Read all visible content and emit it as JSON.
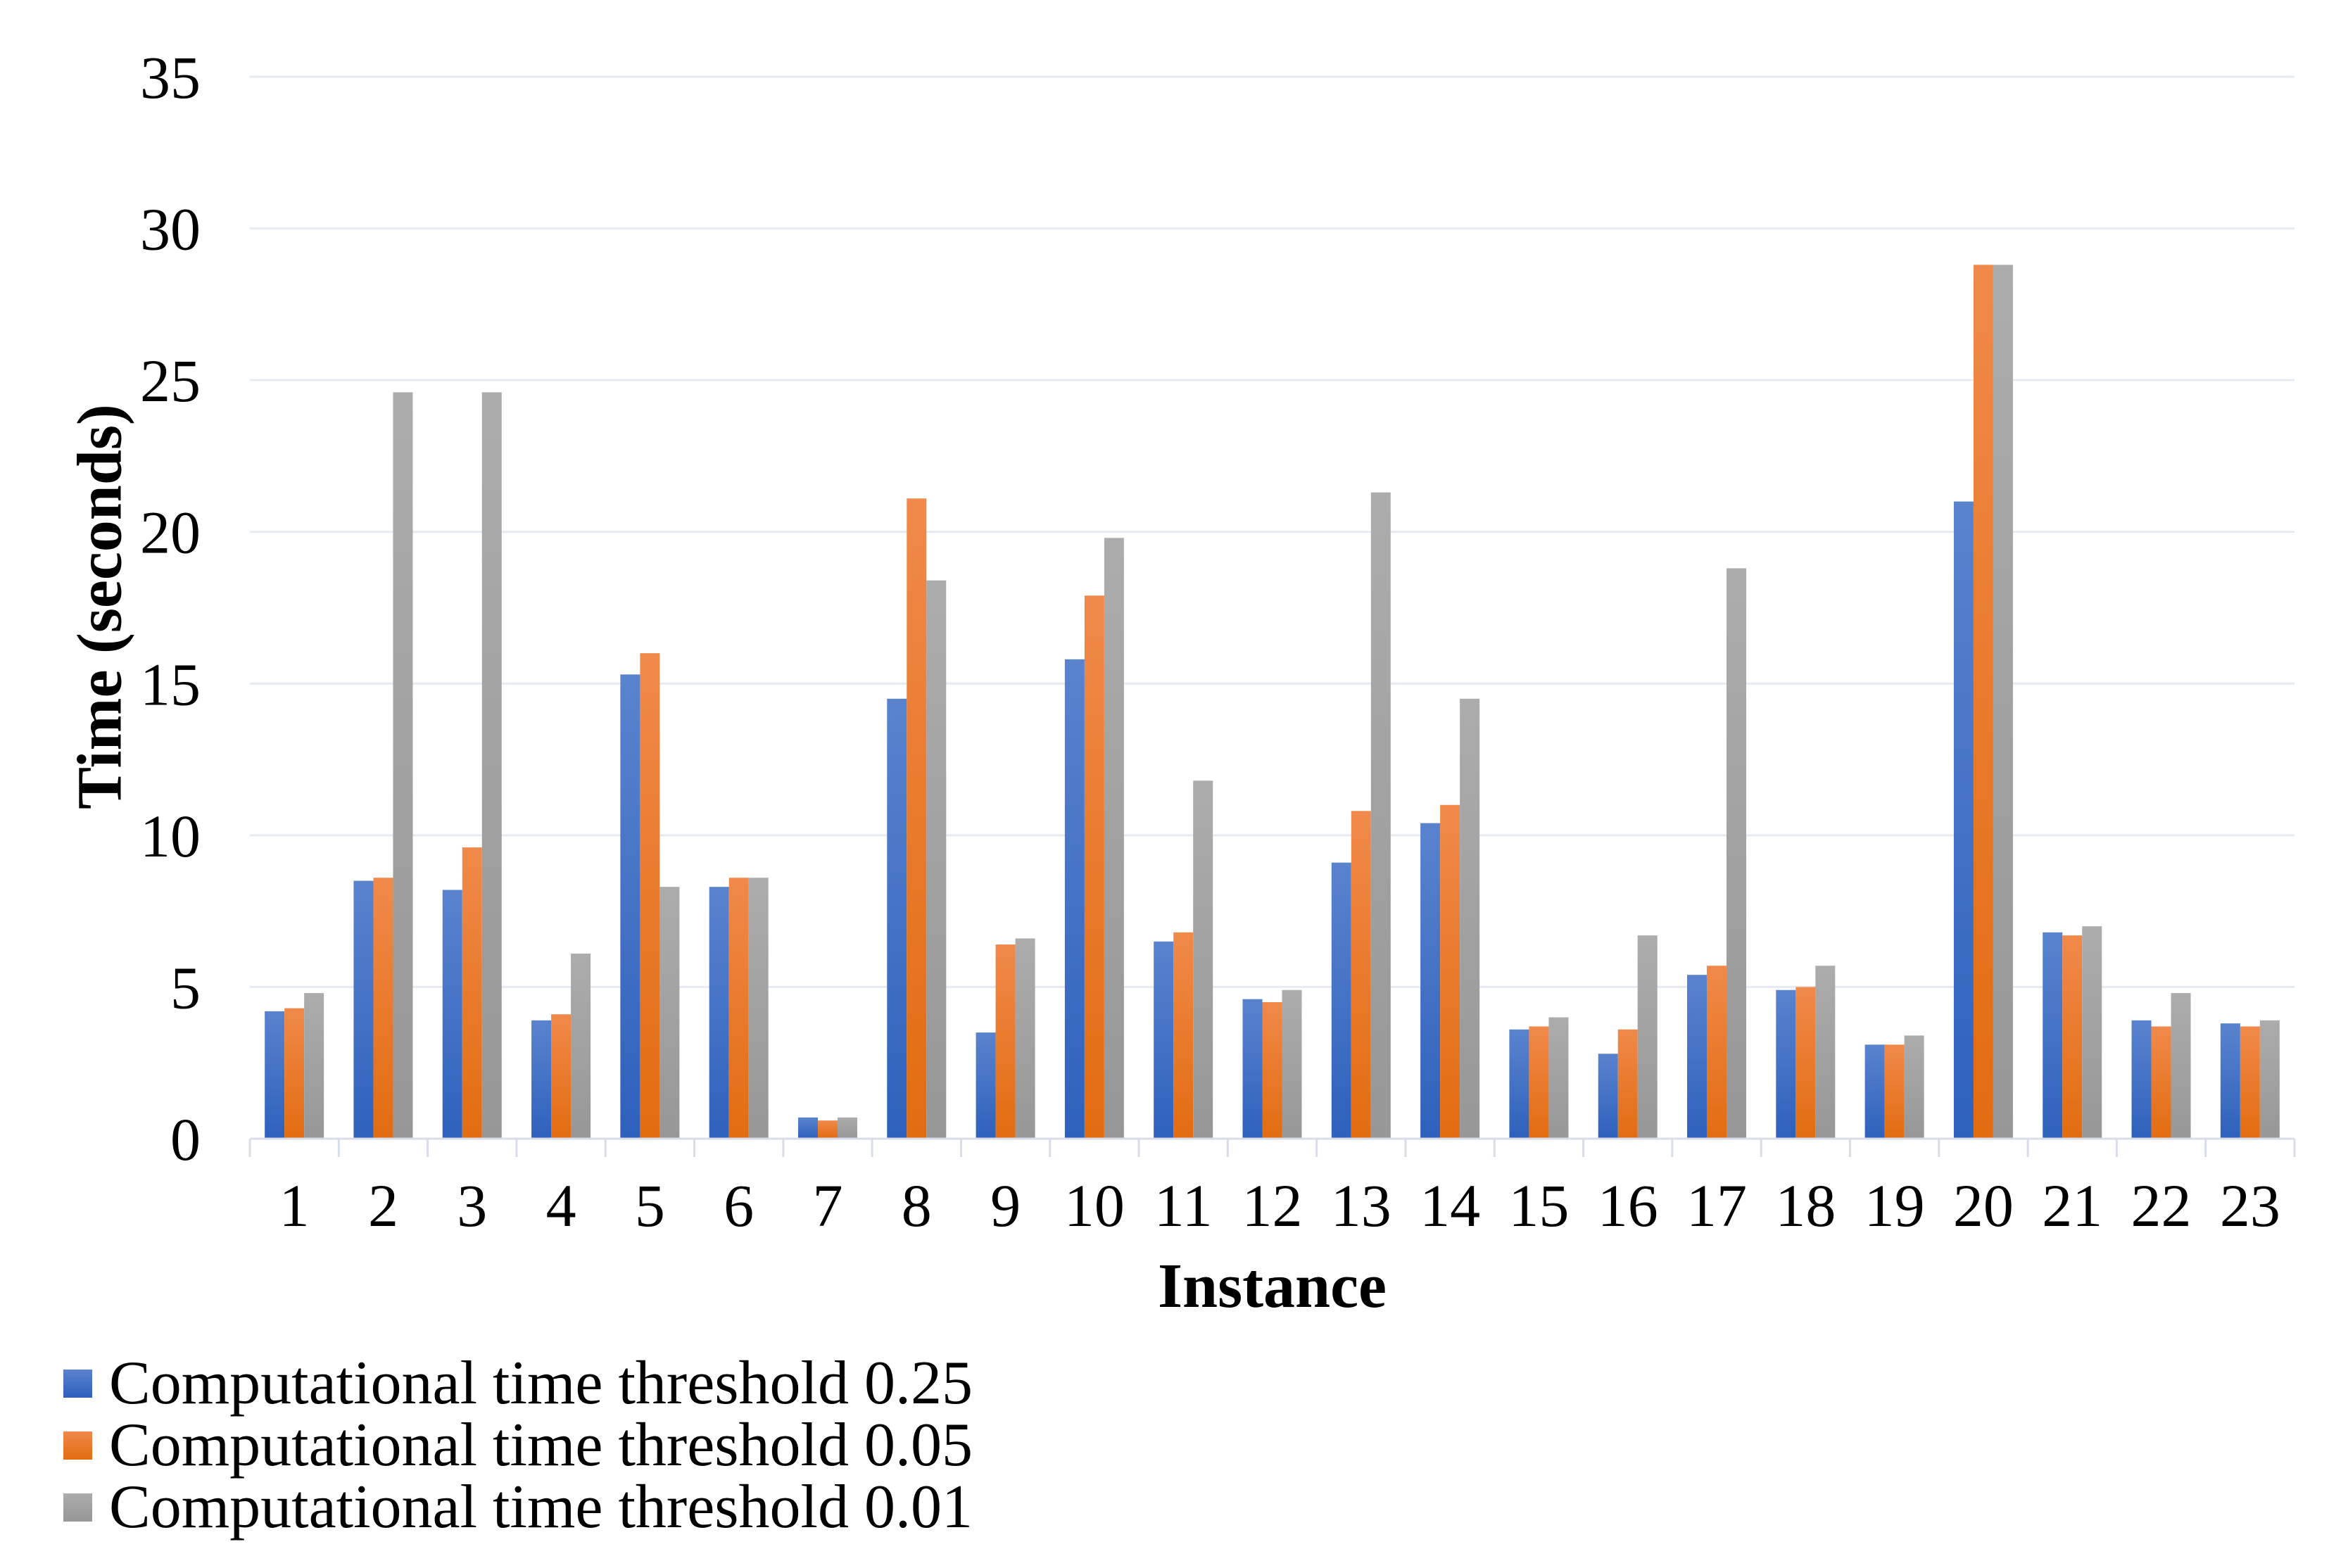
{
  "page": {
    "background": "#FFFFFF"
  },
  "chart_data": {
    "type": "bar",
    "title": "",
    "xlabel": "Instance",
    "ylabel": "Time (seconds)",
    "categories": [
      "1",
      "2",
      "3",
      "4",
      "5",
      "6",
      "7",
      "8",
      "9",
      "10",
      "11",
      "12",
      "13",
      "14",
      "15",
      "16",
      "17",
      "18",
      "19",
      "20",
      "21",
      "22",
      "23"
    ],
    "series": [
      {
        "name": "Computational time threshold 0.25",
        "color_top": "#5A83CE",
        "color_bottom": "#2E61BC",
        "values": [
          4.2,
          8.5,
          8.2,
          3.9,
          15.3,
          8.3,
          0.7,
          14.5,
          3.5,
          15.8,
          6.5,
          4.6,
          9.1,
          10.4,
          3.6,
          2.8,
          5.4,
          4.9,
          3.1,
          21.0,
          6.8,
          3.9,
          3.8
        ]
      },
      {
        "name": "Computational time threshold 0.05",
        "color_top": "#F0894A",
        "color_bottom": "#E26C10",
        "values": [
          4.3,
          8.6,
          9.6,
          4.1,
          16.0,
          8.6,
          0.6,
          21.1,
          6.4,
          17.9,
          6.8,
          4.5,
          10.8,
          11.0,
          3.7,
          3.6,
          5.7,
          5.0,
          3.1,
          28.8,
          6.7,
          3.7,
          3.7
        ]
      },
      {
        "name": "Computational time threshold 0.01",
        "color_top": "#ACACAC",
        "color_bottom": "#979797",
        "values": [
          4.8,
          24.6,
          24.6,
          6.1,
          8.3,
          8.6,
          0.7,
          18.4,
          6.6,
          19.8,
          11.8,
          4.9,
          21.3,
          14.5,
          4.0,
          6.7,
          18.8,
          5.7,
          3.4,
          28.8,
          7.0,
          4.8,
          3.9
        ]
      }
    ],
    "ylim": [
      0,
      35
    ],
    "ytick_step": 5,
    "yticks": [
      0,
      5,
      10,
      15,
      20,
      25,
      30,
      35
    ],
    "grid": true,
    "legend_position": "bottom-left",
    "grid_color": "#E6EAF2",
    "axis_color": "#D8DDE9",
    "text_color": "#000000"
  }
}
